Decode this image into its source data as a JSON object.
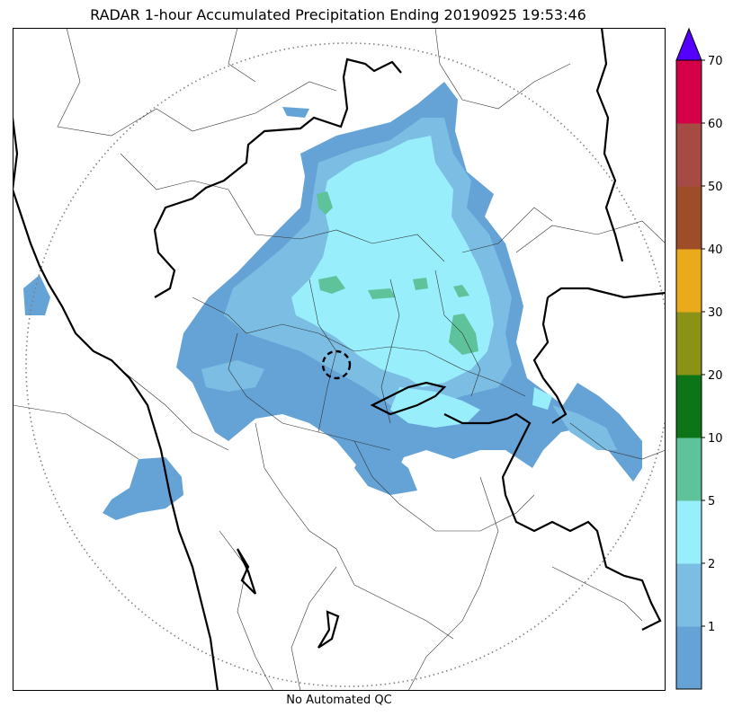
{
  "title": "RADAR 1-hour Accumulated Precipitation Ending 20190925 19:53:46",
  "footer": "No Automated QC",
  "colorbar": {
    "levels": [
      {
        "label": "",
        "color": "#65a3d6"
      },
      {
        "label": "1",
        "color": "#7bbde3"
      },
      {
        "label": "2",
        "color": "#98eefb"
      },
      {
        "label": "5",
        "color": "#5ec39b"
      },
      {
        "label": "10",
        "color": "#0d7518"
      },
      {
        "label": "20",
        "color": "#8a9315"
      },
      {
        "label": "30",
        "color": "#e9aa1c"
      },
      {
        "label": "40",
        "color": "#9d4e28"
      },
      {
        "label": "50",
        "color": "#a64a45"
      },
      {
        "label": "60",
        "color": "#d50148"
      }
    ],
    "top_label": "70",
    "extend_color": "#5500ff"
  },
  "map_colors": {
    "light": "#65a3d6",
    "mid": "#7bbde3",
    "cyan": "#98eefb",
    "green": "#5ec39b"
  }
}
